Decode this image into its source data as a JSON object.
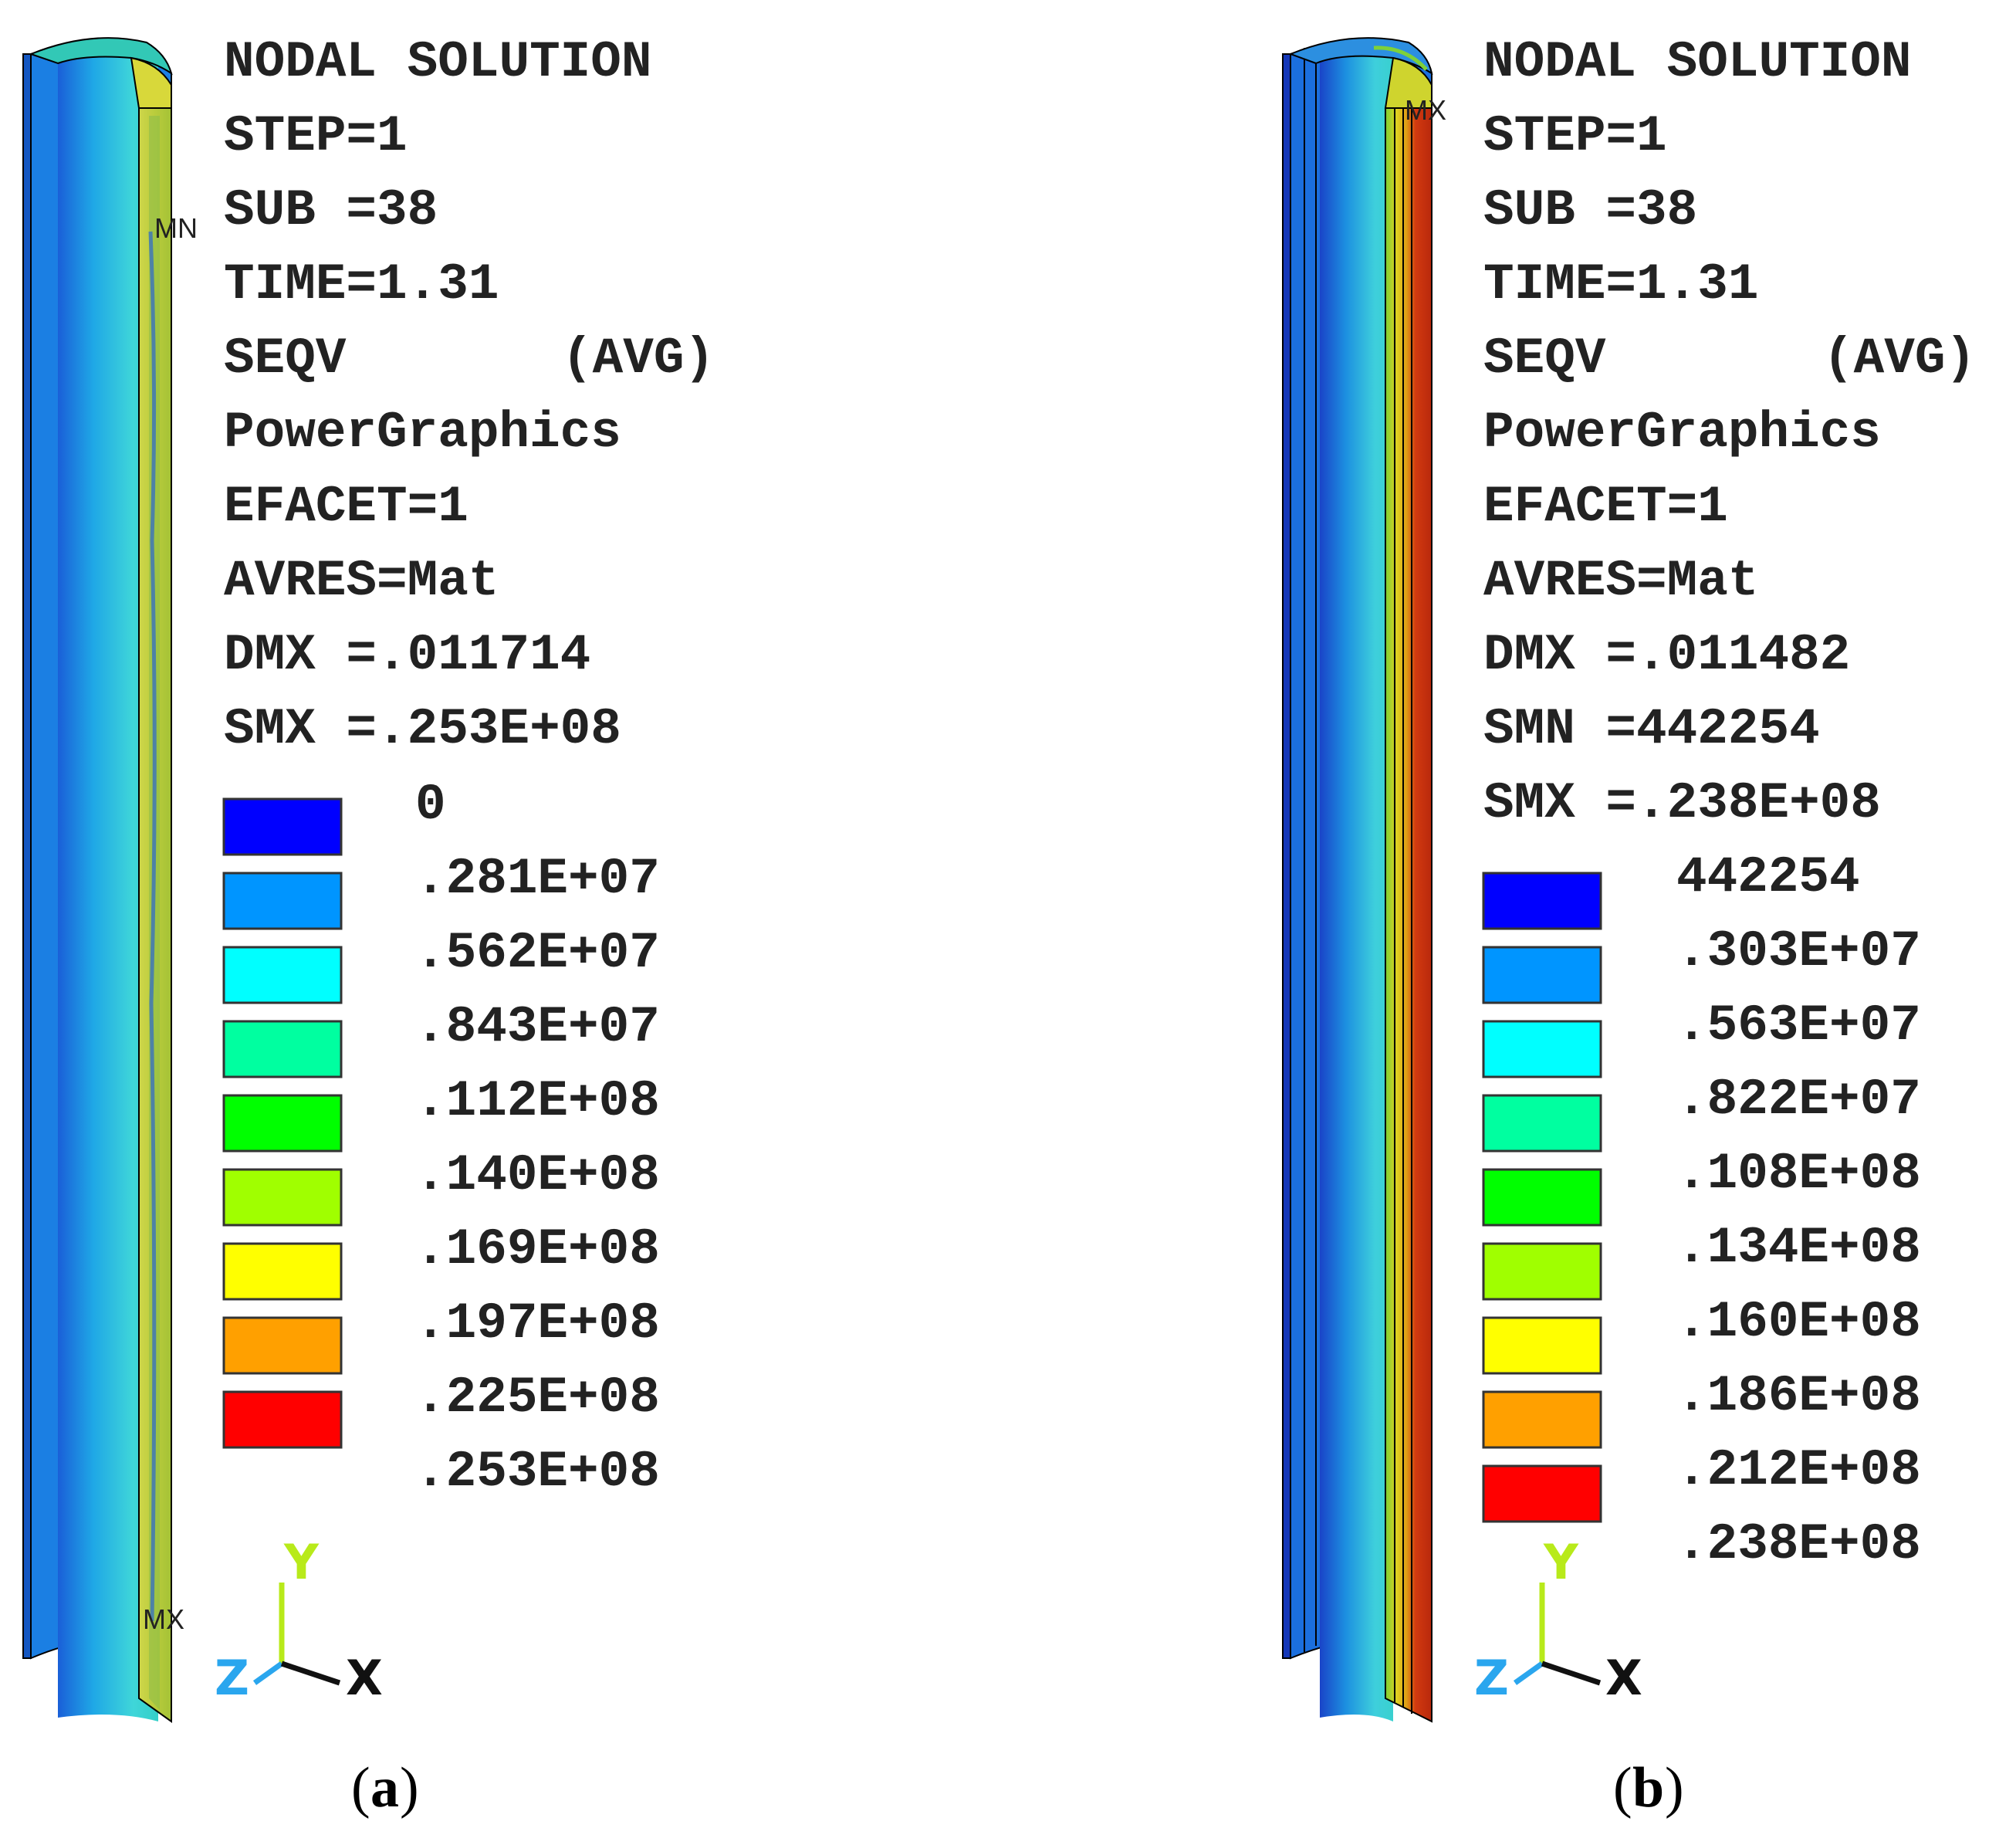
{
  "panels": [
    {
      "id": "a",
      "header": [
        "NODAL SOLUTION",
        "STEP=1",
        "SUB =38",
        "TIME=1.31",
        "SEQV",
        "PowerGraphics",
        "EFACET=1",
        "AVRES=Mat",
        "DMX =.011714",
        "SMX =.253E+08"
      ],
      "seqv_suffix": "(AVG)",
      "legend_values": [
        "0",
        ".281E+07",
        ".562E+07",
        ".843E+07",
        ".112E+08",
        ".140E+08",
        ".169E+08",
        ".197E+08",
        ".225E+08",
        ".253E+08"
      ],
      "min_tag": "MN",
      "max_tag": "MX",
      "caption_letter": "a"
    },
    {
      "id": "b",
      "header": [
        "NODAL SOLUTION",
        "STEP=1",
        "SUB =38",
        "TIME=1.31",
        "SEQV",
        "PowerGraphics",
        "EFACET=1",
        "AVRES=Mat",
        "DMX =.011482",
        "SMN =442254",
        "SMX =.238E+08"
      ],
      "seqv_suffix": "(AVG)",
      "legend_values": [
        "442254",
        ".303E+07",
        ".563E+07",
        ".822E+07",
        ".108E+08",
        ".134E+08",
        ".160E+08",
        ".186E+08",
        ".212E+08",
        ".238E+08"
      ],
      "max_tag": "MX",
      "caption_letter": "b"
    }
  ],
  "legend_colors": [
    "#0000ff",
    "#0095ff",
    "#00ffff",
    "#00ffa0",
    "#00ff00",
    "#a0ff00",
    "#ffff00",
    "#ffa000",
    "#ff0000"
  ],
  "axis_labels": {
    "y": "Y",
    "z": "Z",
    "x": "X"
  },
  "axis_colors": {
    "y": "#b8ea1a",
    "z": "#2aa6ee",
    "x": "#111111"
  },
  "caption_parens": {
    "open": "(",
    "close": ")"
  }
}
